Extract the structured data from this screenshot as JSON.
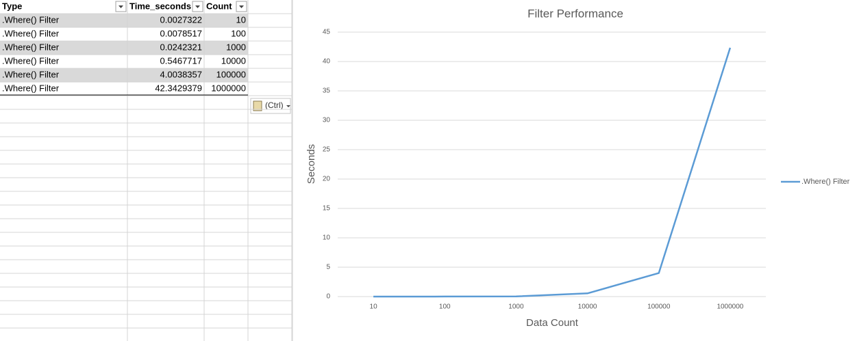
{
  "table": {
    "columns": [
      "Type",
      "Time_seconds",
      "Count"
    ],
    "rows": [
      [
        ".Where() Filter",
        "0.0027322",
        10
      ],
      [
        ".Where() Filter",
        "0.0078517",
        100
      ],
      [
        ".Where() Filter",
        "0.0242321",
        1000
      ],
      [
        ".Where() Filter",
        "0.5467717",
        10000
      ],
      [
        ".Where() Filter",
        "4.0038357",
        100000
      ],
      [
        ".Where() Filter",
        "42.3429379",
        1000000
      ]
    ]
  },
  "paste_button": "(Ctrl)",
  "chart_data": {
    "type": "line",
    "title": "Filter Performance",
    "x_label": "Data Count",
    "y_label": "Seconds",
    "categories": [
      "10",
      "100",
      "1000",
      "10000",
      "100000",
      "1000000"
    ],
    "series": [
      {
        "name": ".Where() Filter",
        "color": "#5b9bd5",
        "values": [
          0.0027322,
          0.0078517,
          0.0242321,
          0.5467717,
          4.0038357,
          42.3429379
        ]
      }
    ],
    "ylim": [
      0,
      45
    ],
    "yticks": [
      0,
      5,
      10,
      15,
      20,
      25,
      30,
      35,
      40,
      45
    ],
    "grid": true,
    "legend": "right"
  }
}
